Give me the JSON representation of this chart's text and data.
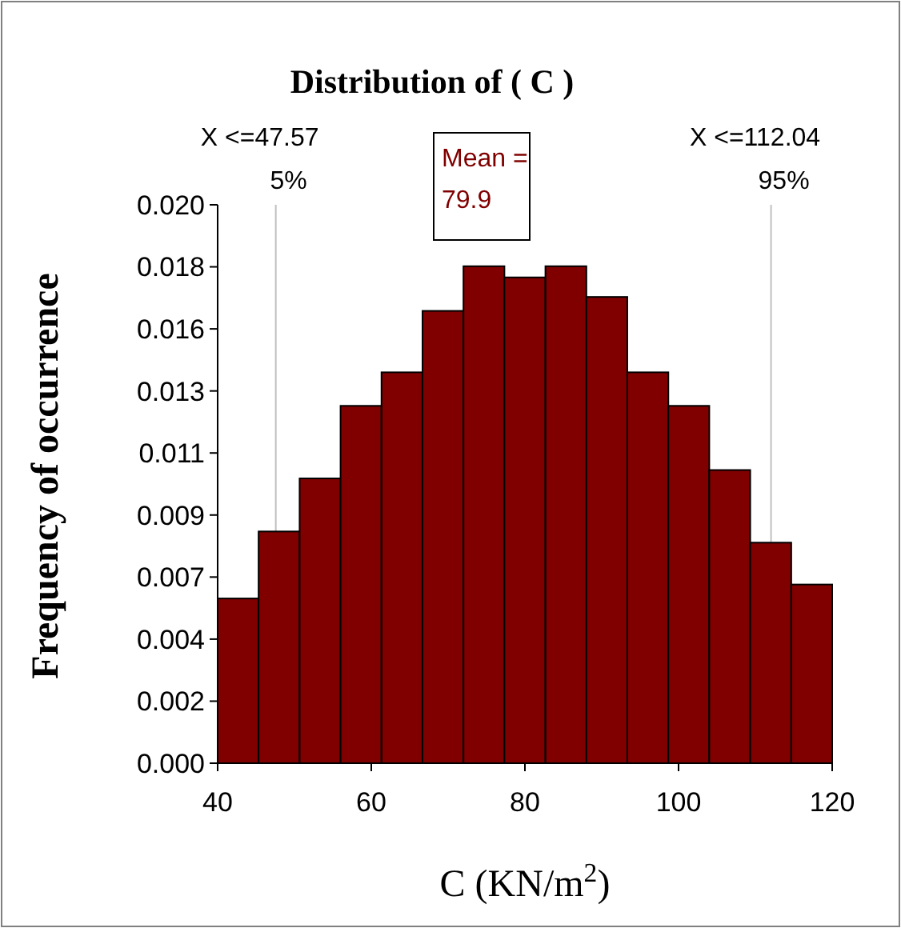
{
  "chart_data": {
    "type": "histogram",
    "title": "Distribution of ( C )",
    "xlabel": "C  (KN/m$^{2}$)",
    "ylabel": "Frequency of occurrence",
    "bins": [
      40,
      45.33,
      50.67,
      56,
      61.33,
      66.67,
      72,
      77.33,
      82.67,
      88,
      93.33,
      98.67,
      104,
      109.33,
      114.67,
      120
    ],
    "values": [
      0.0059,
      0.0083,
      0.0102,
      0.0128,
      0.014,
      0.0162,
      0.0178,
      0.0174,
      0.0178,
      0.0167,
      0.014,
      0.0128,
      0.0105,
      0.0079,
      0.0064
    ],
    "color": "#800000",
    "xlim": [
      40,
      120
    ],
    "xticks": [
      40,
      60,
      80,
      100,
      120
    ],
    "ylim": [
      0,
      0.02
    ],
    "yticks": [
      {
        "value": 0,
        "label": "0.000"
      },
      {
        "value": 0.002222,
        "label": "0.002"
      },
      {
        "value": 0.004444,
        "label": "0.004"
      },
      {
        "value": 0.006667,
        "label": "0.007"
      },
      {
        "value": 0.008889,
        "label": "0.009"
      },
      {
        "value": 0.011111,
        "label": "0.011"
      },
      {
        "value": 0.013333,
        "label": "0.013"
      },
      {
        "value": 0.015556,
        "label": "0.016"
      },
      {
        "value": 0.017778,
        "label": "0.018"
      },
      {
        "value": 0.02,
        "label": "0.020"
      }
    ],
    "ref_lines": [
      {
        "axis": "x",
        "value": 47.57,
        "label": "X <=47.57\n5%",
        "color": "#c0c0c0"
      },
      {
        "axis": "x",
        "value": 112.04,
        "label": "X <=112.04\n95%",
        "color": "#c0c0c0"
      }
    ],
    "annotations": [
      "Mean =\n79.9"
    ],
    "grid": false
  }
}
